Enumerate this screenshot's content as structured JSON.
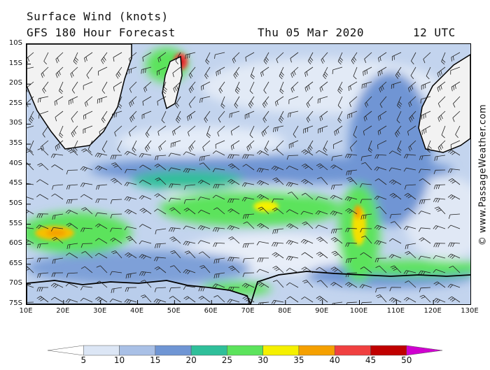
{
  "header": {
    "title": "Surface Wind (knots)",
    "subtitle": "GFS 180 Hour Forecast",
    "valid_date": "Thu 05 Mar 2020",
    "valid_time": "12 UTC"
  },
  "credit": "© www.PassageWeather.com",
  "axes": {
    "lat_labels": [
      "10S",
      "15S",
      "20S",
      "25S",
      "30S",
      "35S",
      "40S",
      "45S",
      "50S",
      "55S",
      "60S",
      "65S",
      "70S",
      "75S"
    ],
    "lon_labels": [
      "10E",
      "20E",
      "30E",
      "40E",
      "50E",
      "60E",
      "70E",
      "80E",
      "90E",
      "100E",
      "110E",
      "120E",
      "130E"
    ]
  },
  "colorbar": {
    "labels": [
      "5",
      "10",
      "15",
      "20",
      "25",
      "30",
      "35",
      "40",
      "45",
      "50"
    ],
    "colors": [
      "#ffffff",
      "#dce6f5",
      "#a9c0e6",
      "#6f95d4",
      "#2fbf9a",
      "#5ce35c",
      "#f5f000",
      "#f5a000",
      "#f04040",
      "#c00000",
      "#d000d0"
    ]
  },
  "palette": {
    "ocean_base": "#c3d4ee",
    "land": "#f2f2f2",
    "coast": "#000000"
  }
}
